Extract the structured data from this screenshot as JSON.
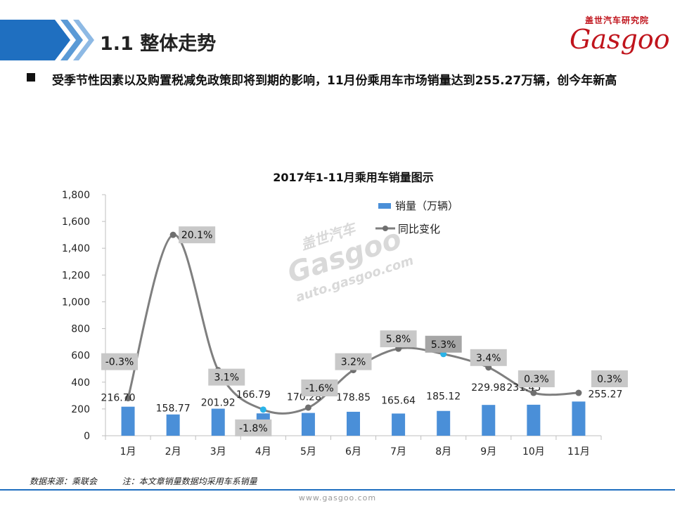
{
  "header": {
    "title": "1.1 整体走势",
    "brand_cn": "盖世汽车研究院",
    "brand_en": "Gasgoo"
  },
  "bullet": {
    "text": "受季节性因素以及购置税减免政策即将到期的影响，11月份乘用车市场销量达到255.27万辆，创今年新高"
  },
  "footer": {
    "source": "数据来源：乘联会",
    "note": "注：本文章销量数据均采用车系销量",
    "url": "www.gasgoo.com"
  },
  "watermark": {
    "cn": "盖世汽车",
    "en": "Gasgoo",
    "url": "auto.gasgoo.com"
  },
  "colors": {
    "accent_blue": "#1f6fc0",
    "bar_blue": "#4a8fd8",
    "line_gray": "#7f7f7f",
    "highlight_cyan": "#2ab3e8",
    "label_box": "#c8c8c8",
    "brand_red": "#c0141c"
  },
  "chart_data": {
    "type": "bar",
    "title": "2017年1-11月乘用车销量图示",
    "categories": [
      "1月",
      "2月",
      "3月",
      "4月",
      "5月",
      "6月",
      "7月",
      "8月",
      "9月",
      "10月",
      "11月"
    ],
    "y_ticks": [
      "0",
      "200",
      "400",
      "600",
      "800",
      "1,000",
      "1,200",
      "1,400",
      "1,600",
      "1,800"
    ],
    "ylim": [
      0,
      1800
    ],
    "legend_position": "top-right",
    "series": [
      {
        "name": "销量（万辆）",
        "type": "bar",
        "values": [
          216.7,
          158.77,
          201.92,
          166.79,
          170.28,
          178.85,
          165.64,
          185.12,
          229.98,
          231.45,
          255.27
        ],
        "labels": [
          "216.70",
          "158.77",
          "201.92",
          "166.79",
          "170.28",
          "178.85",
          "165.64",
          "185.12",
          "229.98",
          "231.45",
          "255.27"
        ]
      },
      {
        "name": "同比变化",
        "type": "line",
        "values": [
          -0.3,
          20.1,
          3.1,
          -1.8,
          -1.6,
          3.2,
          5.8,
          5.3,
          3.4,
          0.3,
          0.3
        ],
        "plotted_level": [
          280,
          1500,
          490,
          195,
          210,
          490,
          650,
          610,
          510,
          320,
          320
        ],
        "labels": [
          "-0.3%",
          "20.1%",
          "3.1%",
          "-1.8%",
          "-1.6%",
          "3.2%",
          "5.8%",
          "5.3%",
          "3.4%",
          "0.3%",
          "0.3%"
        ],
        "highlighted_points": [
          "4月",
          "8月"
        ]
      }
    ]
  }
}
